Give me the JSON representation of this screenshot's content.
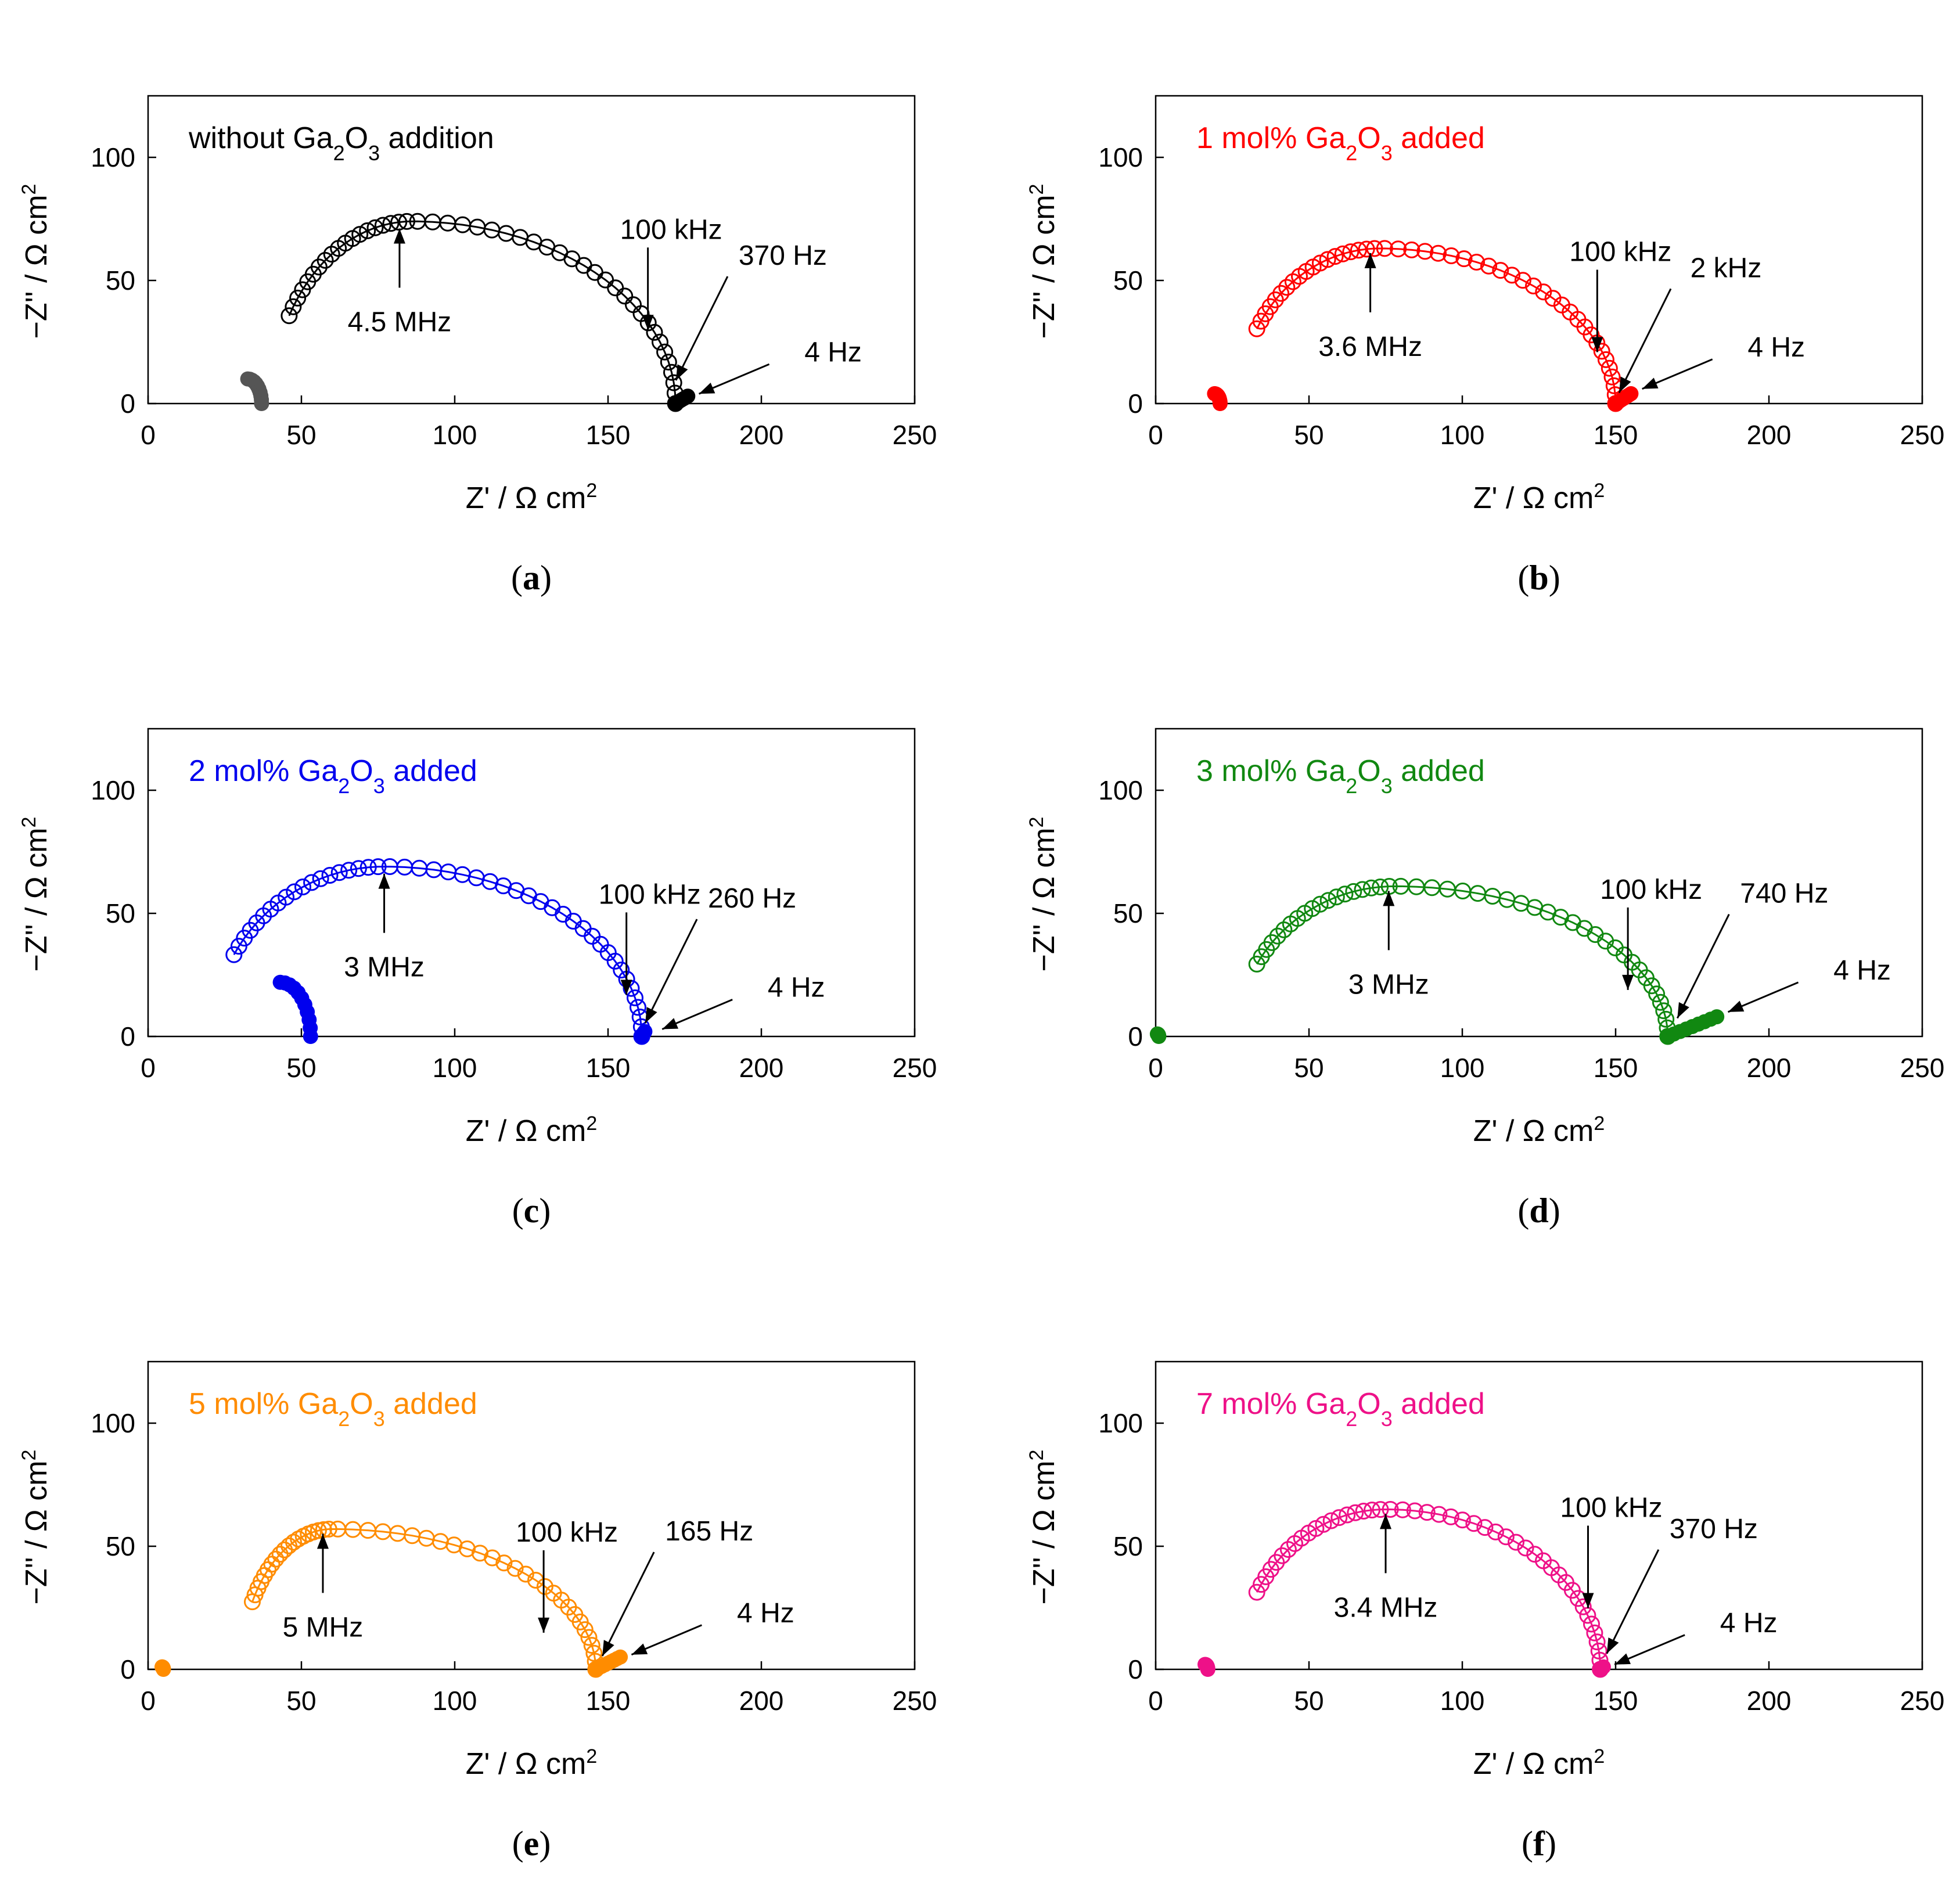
{
  "chart_data": [
    {
      "type": "scatter",
      "letter": "a",
      "title": {
        "pre": "without Ga",
        "sub1": "2",
        "mid": "O",
        "sub2": "3",
        "post": " addition"
      },
      "color": "#000000",
      "hfColor": "#555555",
      "xlabel": {
        "main": "Z' / Ω cm",
        "sup": "2"
      },
      "ylabel": {
        "main": "−Z'' / Ω cm",
        "sup": "2"
      },
      "xlim": [
        0,
        250
      ],
      "ylim": [
        0,
        125
      ],
      "xticks": [
        0,
        50,
        100,
        150,
        200,
        250
      ],
      "yticks": [
        0,
        50,
        100
      ],
      "hf": {
        "r": 10,
        "x0": 37
      },
      "arc": {
        "start": 46,
        "end": 172,
        "peakRe": 86,
        "height": 74
      },
      "tail": {
        "xEnd": 176,
        "yEnd": 3
      },
      "annotations": [
        {
          "text": "4.5 MHz",
          "x": 82,
          "y": 73
        },
        {
          "text": "100 kHz",
          "x": 163,
          "y": 28
        },
        {
          "text": "370 Hz",
          "x": 171,
          "y": 8
        },
        {
          "text": "4 Hz",
          "x": 177,
          "y": 3
        }
      ]
    },
    {
      "type": "scatter",
      "letter": "b",
      "title": {
        "pre": "1 mol% Ga",
        "sub1": "2",
        "mid": "O",
        "sub2": "3",
        "post": " added"
      },
      "color": "#ff0000",
      "hfColor": "#ff0000",
      "xlabel": {
        "main": "Z' / Ω cm",
        "sup": "2"
      },
      "ylabel": {
        "main": "−Z'' / Ω cm",
        "sup": "2"
      },
      "xlim": [
        0,
        250
      ],
      "ylim": [
        0,
        125
      ],
      "xticks": [
        0,
        50,
        100,
        150,
        200,
        250
      ],
      "yticks": [
        0,
        50,
        100
      ],
      "hf": {
        "r": 4,
        "x0": 21
      },
      "arc": {
        "start": 33,
        "end": 150,
        "peakRe": 73,
        "height": 63
      },
      "tail": {
        "xEnd": 155,
        "yEnd": 4
      },
      "annotations": [
        {
          "text": "3.6 MHz",
          "x": 70,
          "y": 63
        },
        {
          "text": "100 kHz",
          "x": 144,
          "y": 19
        },
        {
          "text": "2 kHz",
          "x": 150,
          "y": 3
        },
        {
          "text": "4 Hz",
          "x": 156,
          "y": 5
        }
      ]
    },
    {
      "type": "scatter",
      "letter": "c",
      "title": {
        "pre": "2 mol% Ga",
        "sub1": "2",
        "mid": "O",
        "sub2": "3",
        "post": " added"
      },
      "color": "#0000ee",
      "hfColor": "#0000ee",
      "xlabel": {
        "main": "Z' / Ω cm",
        "sup": "2"
      },
      "ylabel": {
        "main": "−Z'' / Ω cm",
        "sup": "2"
      },
      "xlim": [
        0,
        250
      ],
      "ylim": [
        0,
        125
      ],
      "xticks": [
        0,
        50,
        100,
        150,
        200,
        250
      ],
      "yticks": [
        0,
        50,
        100
      ],
      "hf": {
        "r": 22,
        "x0": 53
      },
      "arc": {
        "start": 28,
        "end": 161,
        "peakRe": 77,
        "height": 69
      },
      "tail": {
        "xEnd": 162,
        "yEnd": 2
      },
      "annotations": [
        {
          "text": "3 MHz",
          "x": 77,
          "y": 68
        },
        {
          "text": "100 kHz",
          "x": 156,
          "y": 15
        },
        {
          "text": "260 Hz",
          "x": 161,
          "y": 4
        },
        {
          "text": "4 Hz",
          "x": 165,
          "y": 2
        }
      ]
    },
    {
      "type": "scatter",
      "letter": "d",
      "title": {
        "pre": "3 mol% Ga",
        "sub1": "2",
        "mid": "O",
        "sub2": "3",
        "post": " added"
      },
      "color": "#118811",
      "hfColor": "#118811",
      "xlabel": {
        "main": "Z' / Ω cm",
        "sup": "2"
      },
      "ylabel": {
        "main": "−Z'' / Ω cm",
        "sup": "2"
      },
      "xlim": [
        0,
        250
      ],
      "ylim": [
        0,
        125
      ],
      "xticks": [
        0,
        50,
        100,
        150,
        200,
        250
      ],
      "yticks": [
        0,
        50,
        100
      ],
      "hf": {
        "r": 1,
        "x0": 1
      },
      "arc": {
        "start": 33,
        "end": 167,
        "peakRe": 78,
        "height": 61
      },
      "tail": {
        "xEnd": 183,
        "yEnd": 8
      },
      "annotations": [
        {
          "text": "3 MHz",
          "x": 76,
          "y": 61
        },
        {
          "text": "100 kHz",
          "x": 154,
          "y": 17
        },
        {
          "text": "740 Hz",
          "x": 169,
          "y": 6
        },
        {
          "text": "4 Hz",
          "x": 184,
          "y": 9
        }
      ]
    },
    {
      "type": "scatter",
      "letter": "e",
      "title": {
        "pre": "5 mol% Ga",
        "sub1": "2",
        "mid": "O",
        "sub2": "3",
        "post": " added"
      },
      "color": "#ff8c00",
      "hfColor": "#ff8c00",
      "xlabel": {
        "main": "Z' / Ω cm",
        "sup": "2"
      },
      "ylabel": {
        "main": "−Z'' / Ω cm",
        "sup": "2"
      },
      "xlim": [
        0,
        250
      ],
      "ylim": [
        0,
        125
      ],
      "xticks": [
        0,
        50,
        100,
        150,
        200,
        250
      ],
      "yticks": [
        0,
        50,
        100
      ],
      "hf": {
        "r": 1,
        "x0": 5
      },
      "arc": {
        "start": 34,
        "end": 146,
        "peakRe": 60,
        "height": 57
      },
      "tail": {
        "xEnd": 154,
        "yEnd": 5
      },
      "annotations": [
        {
          "text": "5 MHz",
          "x": 57,
          "y": 57
        },
        {
          "text": "100 kHz",
          "x": 129,
          "y": 13
        },
        {
          "text": "165 Hz",
          "x": 147,
          "y": 4
        },
        {
          "text": "4 Hz",
          "x": 155,
          "y": 5
        }
      ]
    },
    {
      "type": "scatter",
      "letter": "f",
      "title": {
        "pre": "7 mol% Ga",
        "sub1": "2",
        "mid": "O",
        "sub2": "3",
        "post": " added"
      },
      "color": "#ee1188",
      "hfColor": "#ee1188",
      "xlabel": {
        "main": "Z' / Ω cm",
        "sup": "2"
      },
      "ylabel": {
        "main": "−Z'' / Ω cm",
        "sup": "2"
      },
      "xlim": [
        0,
        250
      ],
      "ylim": [
        0,
        125
      ],
      "xticks": [
        0,
        50,
        100,
        150,
        200,
        250
      ],
      "yticks": [
        0,
        50,
        100
      ],
      "hf": {
        "r": 2,
        "x0": 17
      },
      "arc": {
        "start": 33,
        "end": 145,
        "peakRe": 75,
        "height": 65
      },
      "tail": {
        "xEnd": 146,
        "yEnd": 1
      },
      "annotations": [
        {
          "text": "3.4 MHz",
          "x": 75,
          "y": 65
        },
        {
          "text": "100 kHz",
          "x": 141,
          "y": 23
        },
        {
          "text": "370 Hz",
          "x": 146,
          "y": 5
        },
        {
          "text": "4 Hz",
          "x": 147,
          "y": 1
        }
      ]
    }
  ]
}
